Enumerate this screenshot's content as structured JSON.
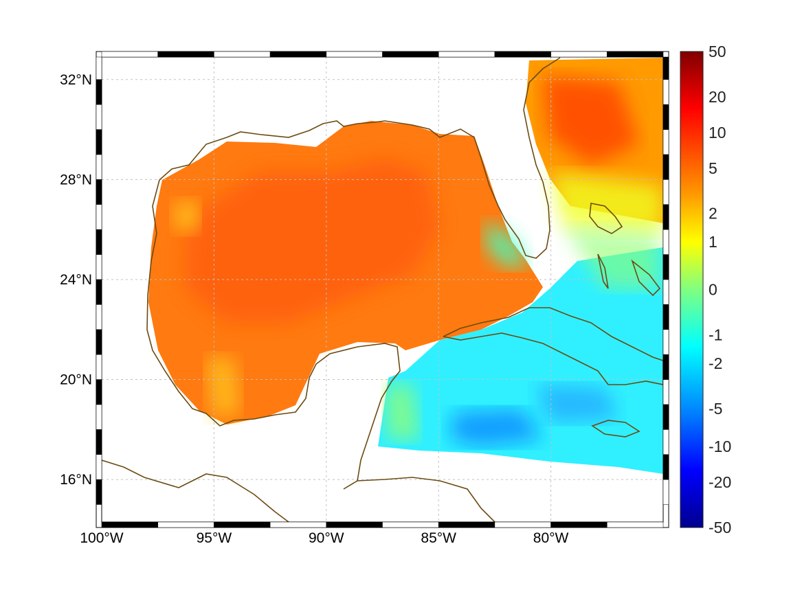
{
  "map": {
    "region": "Gulf of Mexico and Caribbean",
    "lon_range": [
      -100,
      -75
    ],
    "lat_range": [
      14.3,
      32.9
    ],
    "lon_ticks": [
      {
        "value": -100,
        "label": "100°W"
      },
      {
        "value": -95,
        "label": "95°W"
      },
      {
        "value": -90,
        "label": "90°W"
      },
      {
        "value": -85,
        "label": "85°W"
      },
      {
        "value": -80,
        "label": "80°W"
      }
    ],
    "lat_ticks": [
      {
        "value": 32,
        "label": "32°N"
      },
      {
        "value": 28,
        "label": "28°N"
      },
      {
        "value": 24,
        "label": "24°N"
      },
      {
        "value": 20,
        "label": "20°N"
      },
      {
        "value": 16,
        "label": "16°N"
      }
    ],
    "grid": true,
    "coastline_color": "#6b4a10"
  },
  "colorbar": {
    "position": "right",
    "colormap": "jet",
    "ticks": [
      "50",
      "20",
      "10",
      "5",
      "2",
      "1",
      "0",
      "-1",
      "-2",
      "-5",
      "-10",
      "-20",
      "-50"
    ]
  }
}
